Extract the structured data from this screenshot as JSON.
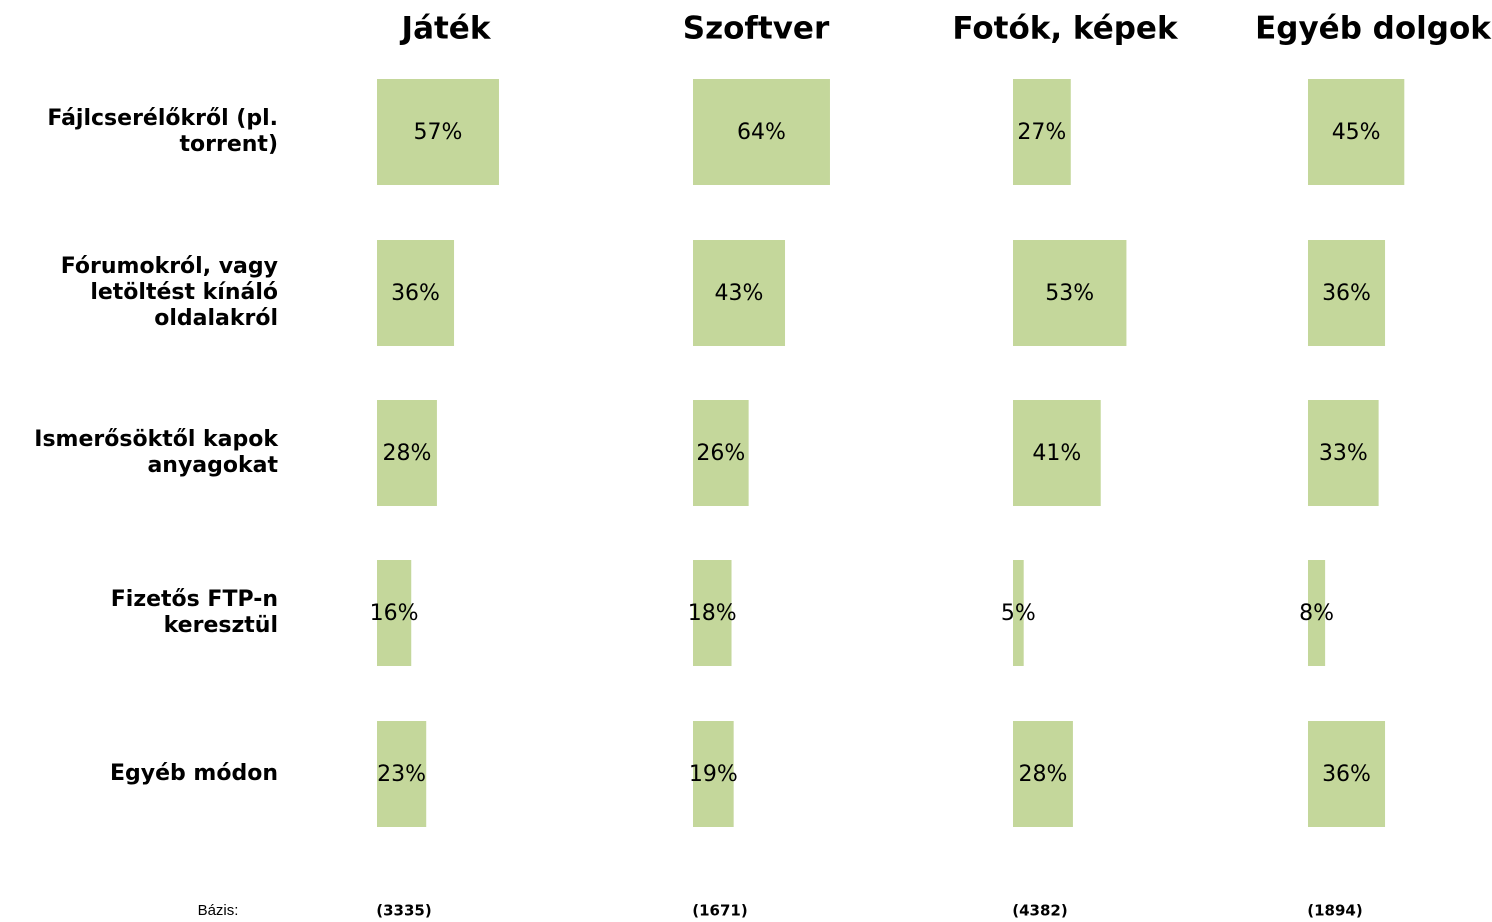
{
  "chart_data": {
    "type": "bar",
    "orientation": "horizontal",
    "color": "#c4d79b",
    "categories": [
      [
        "Fájlcserélőkről (pl.",
        "torrent)"
      ],
      [
        "Fórumokról, vagy",
        "letöltést kínáló",
        "oldalakról"
      ],
      [
        "Ismerősöktől kapok",
        "anyagokat"
      ],
      [
        "Fizetős FTP-n",
        "keresztül"
      ],
      [
        "Egyéb módon"
      ]
    ],
    "xlim": [
      0,
      100
    ],
    "series": [
      {
        "name": "Játék",
        "values": [
          57,
          36,
          28,
          16,
          23
        ],
        "value_labels": [
          "57%",
          "36%",
          "28%",
          "16%",
          "23%"
        ],
        "base": {
          "value": 3335,
          "label": "(3335)"
        }
      },
      {
        "name": "Szoftver",
        "values": [
          64,
          43,
          26,
          18,
          19
        ],
        "value_labels": [
          "64%",
          "43%",
          "26%",
          "18%",
          "19%"
        ],
        "base": {
          "value": 1671,
          "label": "(1671)"
        }
      },
      {
        "name": "Fotók, képek",
        "values": [
          27,
          53,
          41,
          5,
          28
        ],
        "value_labels": [
          "27%",
          "53%",
          "41%",
          "5%",
          "28%"
        ],
        "base": {
          "value": 4382,
          "label": "(4382)"
        }
      },
      {
        "name": "Egyéb dolgok",
        "values": [
          45,
          36,
          33,
          8,
          36
        ],
        "value_labels": [
          "45%",
          "36%",
          "33%",
          "8%",
          "36%"
        ],
        "base": {
          "value": 1894,
          "label": "(1894)"
        }
      }
    ],
    "base_caption": "Bázis:"
  }
}
